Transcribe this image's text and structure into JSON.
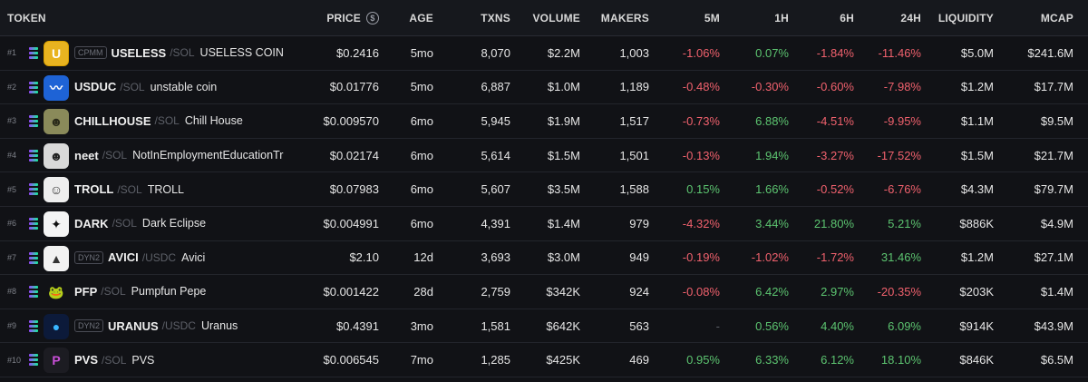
{
  "header": {
    "token": "TOKEN",
    "price": "PRICE",
    "age": "AGE",
    "txns": "TXNS",
    "volume": "VOLUME",
    "makers": "MAKERS",
    "m5": "5M",
    "h1": "1H",
    "h6": "6H",
    "h24": "24H",
    "liquidity": "LIQUIDITY",
    "mcap": "MCAP",
    "price_icon": "dollar-circle-icon"
  },
  "rows": [
    {
      "rank": "#1",
      "dex": "CPMM",
      "symbol": "USELESS",
      "quote": "/SOL",
      "name": "USELESS COIN",
      "price": "$0.2416",
      "age": "5mo",
      "txns": "8,070",
      "volume": "$2.2M",
      "makers": "1,003",
      "m5": "-1.06%",
      "h1": "0.07%",
      "h6": "-1.84%",
      "h24": "-11.46%",
      "liquidity": "$5.0M",
      "mcap": "$241.6M",
      "logo": "U",
      "logo_bg": "#e8b320",
      "logo_fg": "#ffffff"
    },
    {
      "rank": "#2",
      "dex": "",
      "symbol": "USDUC",
      "quote": "/SOL",
      "name": "unstable coin",
      "price": "$0.01776",
      "age": "5mo",
      "txns": "6,887",
      "volume": "$1.0M",
      "makers": "1,189",
      "m5": "-0.48%",
      "h1": "-0.30%",
      "h6": "-0.60%",
      "h24": "-7.98%",
      "liquidity": "$1.2M",
      "mcap": "$17.7M",
      "logo": "〰",
      "logo_bg": "#1e63d6",
      "logo_fg": "#ffffff"
    },
    {
      "rank": "#3",
      "dex": "",
      "symbol": "CHILLHOUSE",
      "quote": "/SOL",
      "name": "Chill House",
      "price": "$0.009570",
      "age": "6mo",
      "txns": "5,945",
      "volume": "$1.9M",
      "makers": "1,517",
      "m5": "-0.73%",
      "h1": "6.88%",
      "h6": "-4.51%",
      "h24": "-9.95%",
      "liquidity": "$1.1M",
      "mcap": "$9.5M",
      "logo": "☻",
      "logo_bg": "#8a8a5a",
      "logo_fg": "#2a2a1a"
    },
    {
      "rank": "#4",
      "dex": "",
      "symbol": "neet",
      "quote": "/SOL",
      "name": "NotInEmploymentEducationTr",
      "price": "$0.02174",
      "age": "6mo",
      "txns": "5,614",
      "volume": "$1.5M",
      "makers": "1,501",
      "m5": "-0.13%",
      "h1": "1.94%",
      "h6": "-3.27%",
      "h24": "-17.52%",
      "liquidity": "$1.5M",
      "mcap": "$21.7M",
      "logo": "☻",
      "logo_bg": "#d9d9d9",
      "logo_fg": "#222222"
    },
    {
      "rank": "#5",
      "dex": "",
      "symbol": "TROLL",
      "quote": "/SOL",
      "name": "TROLL",
      "price": "$0.07983",
      "age": "6mo",
      "txns": "5,607",
      "volume": "$3.5M",
      "makers": "1,588",
      "m5": "0.15%",
      "h1": "1.66%",
      "h6": "-0.52%",
      "h24": "-6.76%",
      "liquidity": "$4.3M",
      "mcap": "$79.7M",
      "logo": "☺",
      "logo_bg": "#eeeeee",
      "logo_fg": "#333333"
    },
    {
      "rank": "#6",
      "dex": "",
      "symbol": "DARK",
      "quote": "/SOL",
      "name": "Dark Eclipse",
      "price": "$0.004991",
      "age": "6mo",
      "txns": "4,391",
      "volume": "$1.4M",
      "makers": "979",
      "m5": "-4.32%",
      "h1": "3.44%",
      "h6": "21.80%",
      "h24": "5.21%",
      "liquidity": "$886K",
      "mcap": "$4.9M",
      "logo": "✦",
      "logo_bg": "#f4f4f4",
      "logo_fg": "#111111"
    },
    {
      "rank": "#7",
      "dex": "DYN2",
      "symbol": "AVICI",
      "quote": "/USDC",
      "name": "Avici",
      "price": "$2.10",
      "age": "12d",
      "txns": "3,693",
      "volume": "$3.0M",
      "makers": "949",
      "m5": "-0.19%",
      "h1": "-1.02%",
      "h6": "-1.72%",
      "h24": "31.46%",
      "liquidity": "$1.2M",
      "mcap": "$27.1M",
      "logo": "▲",
      "logo_bg": "#f2f2f2",
      "logo_fg": "#333333"
    },
    {
      "rank": "#8",
      "dex": "",
      "symbol": "PFP",
      "quote": "/SOL",
      "name": "Pumpfun Pepe",
      "price": "$0.001422",
      "age": "28d",
      "txns": "2,759",
      "volume": "$342K",
      "makers": "924",
      "m5": "-0.08%",
      "h1": "6.42%",
      "h6": "2.97%",
      "h24": "-20.35%",
      "liquidity": "$203K",
      "mcap": "$1.4M",
      "logo": "🐸",
      "logo_bg": "#111216",
      "logo_fg": "#5bb548"
    },
    {
      "rank": "#9",
      "dex": "DYN2",
      "symbol": "URANUS",
      "quote": "/USDC",
      "name": "Uranus",
      "price": "$0.4391",
      "age": "3mo",
      "txns": "1,581",
      "volume": "$642K",
      "makers": "563",
      "m5": "-",
      "h1": "0.56%",
      "h6": "4.40%",
      "h24": "6.09%",
      "liquidity": "$914K",
      "mcap": "$43.9M",
      "logo": "●",
      "logo_bg": "#0c1a3a",
      "logo_fg": "#39b6ff"
    },
    {
      "rank": "#10",
      "dex": "",
      "symbol": "PVS",
      "quote": "/SOL",
      "name": "PVS",
      "price": "$0.006545",
      "age": "7mo",
      "txns": "1,285",
      "volume": "$425K",
      "makers": "469",
      "m5": "0.95%",
      "h1": "6.33%",
      "h6": "6.12%",
      "h24": "18.10%",
      "liquidity": "$846K",
      "mcap": "$6.5M",
      "logo": "P",
      "logo_bg": "#1c1c22",
      "logo_fg": "#c94fd8"
    }
  ]
}
